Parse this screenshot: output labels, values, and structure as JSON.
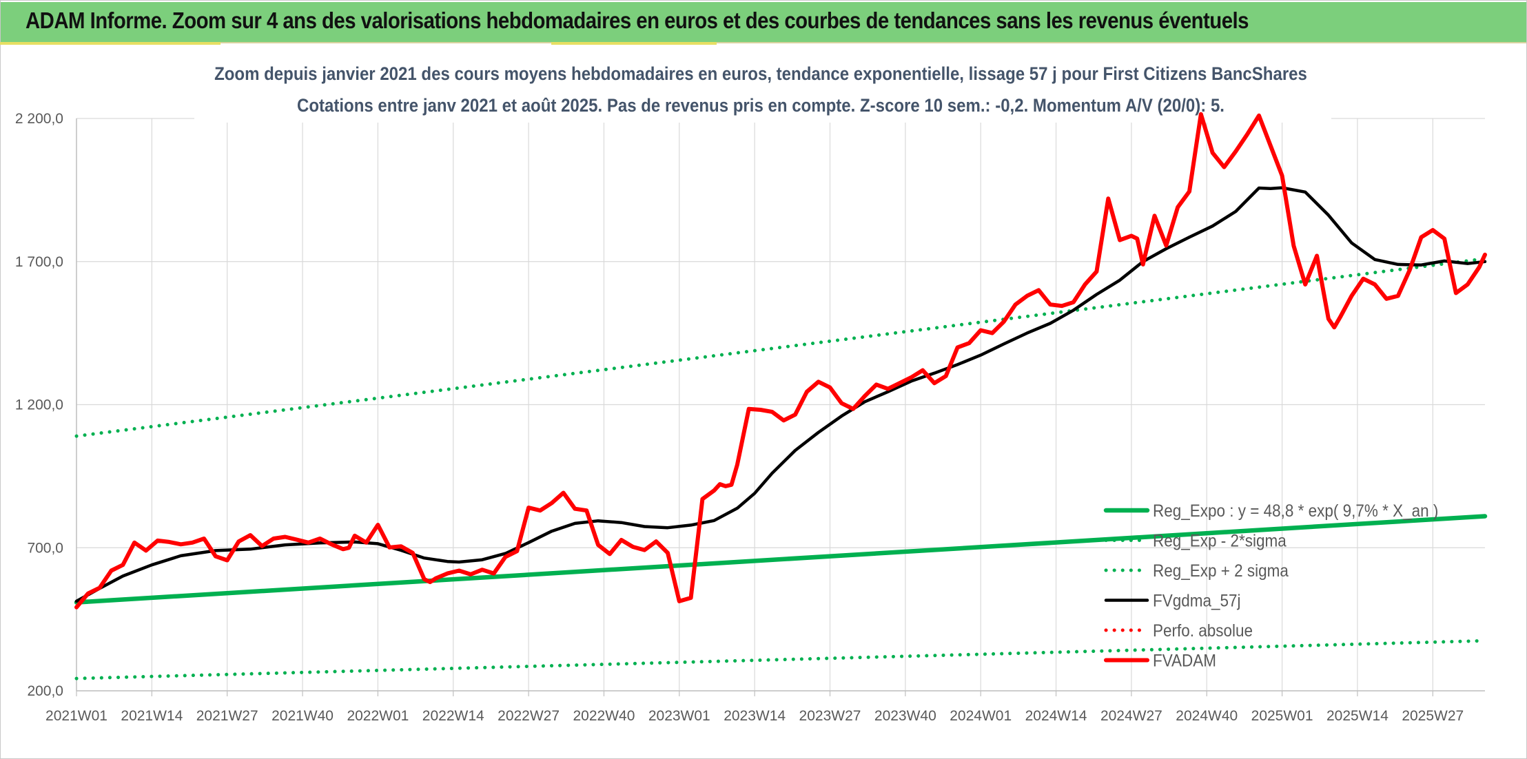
{
  "header": {
    "title": "ADAM Informe. Zoom sur 4 ans des valorisations hebdomadaires en euros et des courbes de tendances sans les revenus éventuels",
    "background_color": "#7ccf7c"
  },
  "chart_data": {
    "type": "line",
    "title": "Zoom depuis janvier 2021 des cours moyens hebdomadaires en euros, tendance exponentielle, lissage 57 j pour First Citizens BancShares",
    "subtitle": "Cotations entre janv 2021 et août 2025. Pas de revenus pris en compte. Z-score 10 sem.: -0,2. Momentum A/V (20/0): 5.",
    "xlabel": "",
    "ylabel": "",
    "x_unit": "week index from 2021W01",
    "x_range": [
      0,
      243
    ],
    "ylim": [
      200,
      2200
    ],
    "y_ticks": [
      200,
      700,
      1200,
      1700,
      2200
    ],
    "y_tick_labels": [
      "200,0",
      "700,0",
      "1 200,0",
      "1 700,0",
      "2 200,0"
    ],
    "x_ticks": [
      0,
      13,
      26,
      39,
      52,
      65,
      78,
      91,
      104,
      117,
      130,
      143,
      156,
      169,
      182,
      195,
      208,
      221,
      234
    ],
    "x_tick_labels": [
      "2021W01",
      "2021W14",
      "2021W27",
      "2021W40",
      "2022W01",
      "2022W14",
      "2022W27",
      "2022W40",
      "2023W01",
      "2023W14",
      "2023W27",
      "2023W40",
      "2024W01",
      "2024W14",
      "2024W27",
      "2024W40",
      "2025W01",
      "2025W14",
      "2025W27"
    ],
    "grid": true,
    "legend_position": "bottom-right",
    "series": [
      {
        "name": "Reg_Expo : y = 48,8 * exp( 9,7% *  X_an )",
        "color": "#00b050",
        "style": "solid-thick",
        "x": [
          0,
          243
        ],
        "y": [
          509,
          810
        ]
      },
      {
        "name": "Reg_Exp - 2*sigma",
        "color": "#00b050",
        "style": "dotted",
        "x": [
          0,
          243
        ],
        "y": [
          243,
          375
        ]
      },
      {
        "name": "Reg_Exp + 2 sigma",
        "color": "#00b050",
        "style": "dotted",
        "x": [
          0,
          243
        ],
        "y": [
          1090,
          1710
        ]
      },
      {
        "name": "FVgdma_57j",
        "color": "#000000",
        "style": "solid",
        "x": [
          0,
          4,
          8,
          13,
          18,
          24,
          30,
          36,
          42,
          48,
          52,
          56,
          60,
          64,
          66,
          70,
          74,
          78,
          82,
          86,
          90,
          94,
          98,
          102,
          106,
          110,
          114,
          117,
          120,
          124,
          128,
          132,
          136,
          140,
          144,
          148,
          152,
          156,
          160,
          164,
          168,
          172,
          176,
          180,
          184,
          188,
          192,
          196,
          200,
          204,
          206,
          208,
          212,
          216,
          220,
          224,
          228,
          232,
          236,
          240,
          243
        ],
        "y": [
          513,
          558,
          601,
          640,
          672,
          690,
          695,
          710,
          717,
          720,
          714,
          691,
          664,
          652,
          650,
          658,
          680,
          718,
          758,
          785,
          794,
          788,
          774,
          770,
          779,
          795,
          838,
          890,
          960,
          1040,
          1103,
          1160,
          1210,
          1245,
          1282,
          1310,
          1340,
          1373,
          1412,
          1450,
          1484,
          1530,
          1585,
          1635,
          1700,
          1745,
          1785,
          1824,
          1875,
          1957,
          1955,
          1958,
          1943,
          1862,
          1765,
          1707,
          1690,
          1688,
          1702,
          1693,
          1700
        ]
      },
      {
        "name": "Perfo. absolue",
        "color": "#ff0000",
        "style": "dotted",
        "x": [],
        "y": []
      },
      {
        "name": "FVADAM",
        "color": "#ff0000",
        "style": "solid-thick",
        "x": [
          0,
          2,
          4,
          6,
          8,
          10,
          12,
          14,
          16,
          18,
          20,
          22,
          24,
          26,
          28,
          30,
          32,
          34,
          36,
          38,
          40,
          42,
          44,
          46,
          47,
          48,
          50,
          52,
          54,
          56,
          58,
          60,
          61,
          62,
          64,
          66,
          68,
          70,
          72,
          74,
          76,
          78,
          80,
          82,
          84,
          86,
          88,
          90,
          92,
          94,
          96,
          98,
          100,
          102,
          104,
          106,
          108,
          110,
          111,
          112,
          113,
          114,
          116,
          118,
          120,
          122,
          124,
          126,
          128,
          130,
          132,
          134,
          136,
          138,
          140,
          142,
          144,
          146,
          148,
          150,
          152,
          154,
          156,
          158,
          160,
          162,
          164,
          166,
          168,
          170,
          172,
          174,
          176,
          178,
          180,
          182,
          183,
          184,
          186,
          188,
          190,
          192,
          194,
          196,
          198,
          200,
          202,
          204,
          206,
          208,
          210,
          212,
          214,
          216,
          217,
          218,
          220,
          222,
          224,
          226,
          228,
          230,
          232,
          234,
          236,
          238,
          240,
          242,
          243
        ],
        "y": [
          492,
          540,
          560,
          620,
          640,
          718,
          690,
          725,
          720,
          712,
          718,
          732,
          670,
          656,
          722,
          744,
          706,
          732,
          738,
          728,
          718,
          732,
          712,
          695,
          700,
          742,
          718,
          780,
          701,
          705,
          682,
          590,
          580,
          593,
          610,
          620,
          607,
          623,
          610,
          668,
          688,
          840,
          830,
          856,
          892,
          836,
          830,
          710,
          678,
          727,
          703,
          692,
          722,
          682,
          513,
          525,
          870,
          900,
          922,
          915,
          920,
          990,
          1185,
          1182,
          1175,
          1145,
          1165,
          1245,
          1280,
          1260,
          1205,
          1185,
          1230,
          1270,
          1255,
          1275,
          1295,
          1320,
          1275,
          1300,
          1400,
          1415,
          1460,
          1450,
          1490,
          1550,
          1580,
          1600,
          1550,
          1545,
          1558,
          1620,
          1665,
          1920,
          1775,
          1790,
          1780,
          1690,
          1860,
          1756,
          1890,
          1945,
          2215,
          2080,
          2030,
          2085,
          2145,
          2210,
          2105,
          2000,
          1755,
          1620,
          1720,
          1500,
          1470,
          1505,
          1580,
          1640,
          1620,
          1570,
          1580,
          1670,
          1785,
          1810,
          1780,
          1590,
          1620,
          1680,
          1724
        ]
      }
    ]
  }
}
